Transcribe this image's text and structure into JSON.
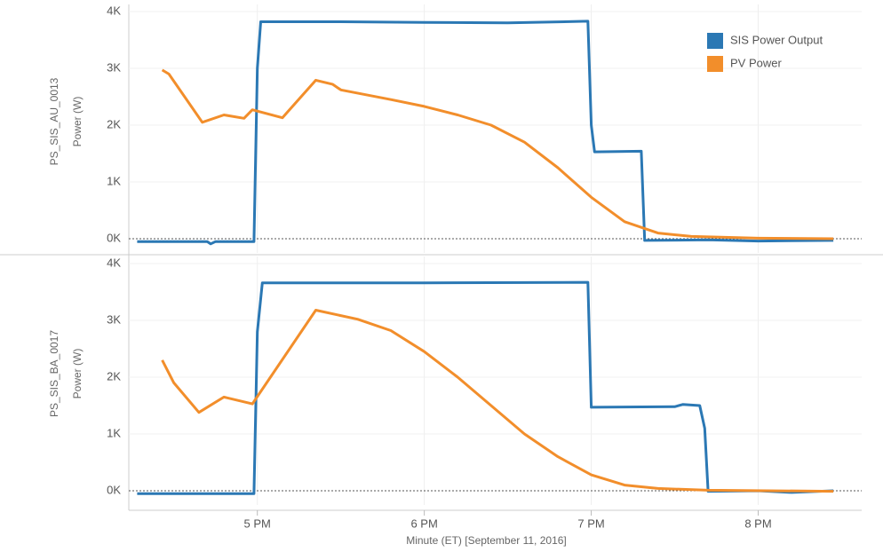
{
  "chart_data": [
    {
      "type": "line",
      "panel_label": "PS_SIS_AU_0013",
      "y_label": "Power (W)",
      "legend": "top-right",
      "xlim": [
        16.23,
        20.62
      ],
      "xticks": [
        17,
        18,
        19,
        20
      ],
      "ylim": [
        -250,
        4125
      ],
      "yticks": [
        {
          "value": 0,
          "label": "0K"
        },
        {
          "value": 1000,
          "label": "1K"
        },
        {
          "value": 2000,
          "label": "2K"
        },
        {
          "value": 3000,
          "label": "3K"
        },
        {
          "value": 4000,
          "label": "4K"
        }
      ],
      "grid": true,
      "series": [
        {
          "name": "SIS Power Output",
          "color": "#2b78b4",
          "x": [
            16.28,
            16.7,
            16.72,
            16.75,
            16.98,
            17.0,
            17.02,
            17.5,
            18.0,
            18.5,
            18.98,
            19.0,
            19.02,
            19.3,
            19.32,
            19.7,
            20.0,
            20.45
          ],
          "values": [
            -50,
            -50,
            -90,
            -50,
            -50,
            3000,
            3820,
            3820,
            3810,
            3800,
            3830,
            2000,
            1530,
            1540,
            -30,
            -20,
            -40,
            -30
          ]
        },
        {
          "name": "PV Power",
          "color": "#f28e2b",
          "x": [
            16.43,
            16.47,
            16.67,
            16.8,
            16.92,
            16.97,
            17.15,
            17.35,
            17.45,
            17.5,
            17.8,
            18.0,
            18.2,
            18.4,
            18.6,
            18.8,
            19.0,
            19.2,
            19.4,
            19.6,
            20.0,
            20.45
          ],
          "values": [
            2970,
            2900,
            2050,
            2180,
            2120,
            2270,
            2130,
            2790,
            2720,
            2620,
            2450,
            2330,
            2180,
            2000,
            1700,
            1250,
            730,
            300,
            100,
            40,
            10,
            0
          ]
        }
      ]
    },
    {
      "type": "line",
      "panel_label": "PS_SIS_BA_0017",
      "y_label": "Power (W)",
      "x_label": "Minute (ET) [September 11, 2016]",
      "xlim": [
        16.23,
        20.62
      ],
      "xticks": [
        {
          "value": 17,
          "label": "5 PM"
        },
        {
          "value": 18,
          "label": "6 PM"
        },
        {
          "value": 19,
          "label": "7 PM"
        },
        {
          "value": 20,
          "label": "8 PM"
        }
      ],
      "ylim": [
        -250,
        4125
      ],
      "yticks": [
        {
          "value": 0,
          "label": "0K"
        },
        {
          "value": 1000,
          "label": "1K"
        },
        {
          "value": 2000,
          "label": "2K"
        },
        {
          "value": 3000,
          "label": "3K"
        },
        {
          "value": 4000,
          "label": "4K"
        }
      ],
      "grid": true,
      "series": [
        {
          "color": "#2b78b4",
          "x": [
            16.28,
            16.98,
            17.0,
            17.03,
            18.0,
            18.98,
            19.0,
            19.5,
            19.55,
            19.65,
            19.68,
            19.7,
            20.0,
            20.2,
            20.45
          ],
          "values": [
            -50,
            -50,
            2800,
            3660,
            3660,
            3670,
            1470,
            1480,
            1520,
            1500,
            1100,
            -10,
            0,
            -30,
            0
          ]
        },
        {
          "color": "#f28e2b",
          "x": [
            16.43,
            16.5,
            16.65,
            16.8,
            16.97,
            17.35,
            17.6,
            17.8,
            18.0,
            18.2,
            18.4,
            18.6,
            18.8,
            19.0,
            19.2,
            19.4,
            19.7,
            20.45
          ],
          "values": [
            2300,
            1900,
            1380,
            1650,
            1530,
            3180,
            3020,
            2820,
            2450,
            2000,
            1500,
            1000,
            600,
            280,
            100,
            40,
            10,
            -10
          ]
        }
      ]
    }
  ]
}
